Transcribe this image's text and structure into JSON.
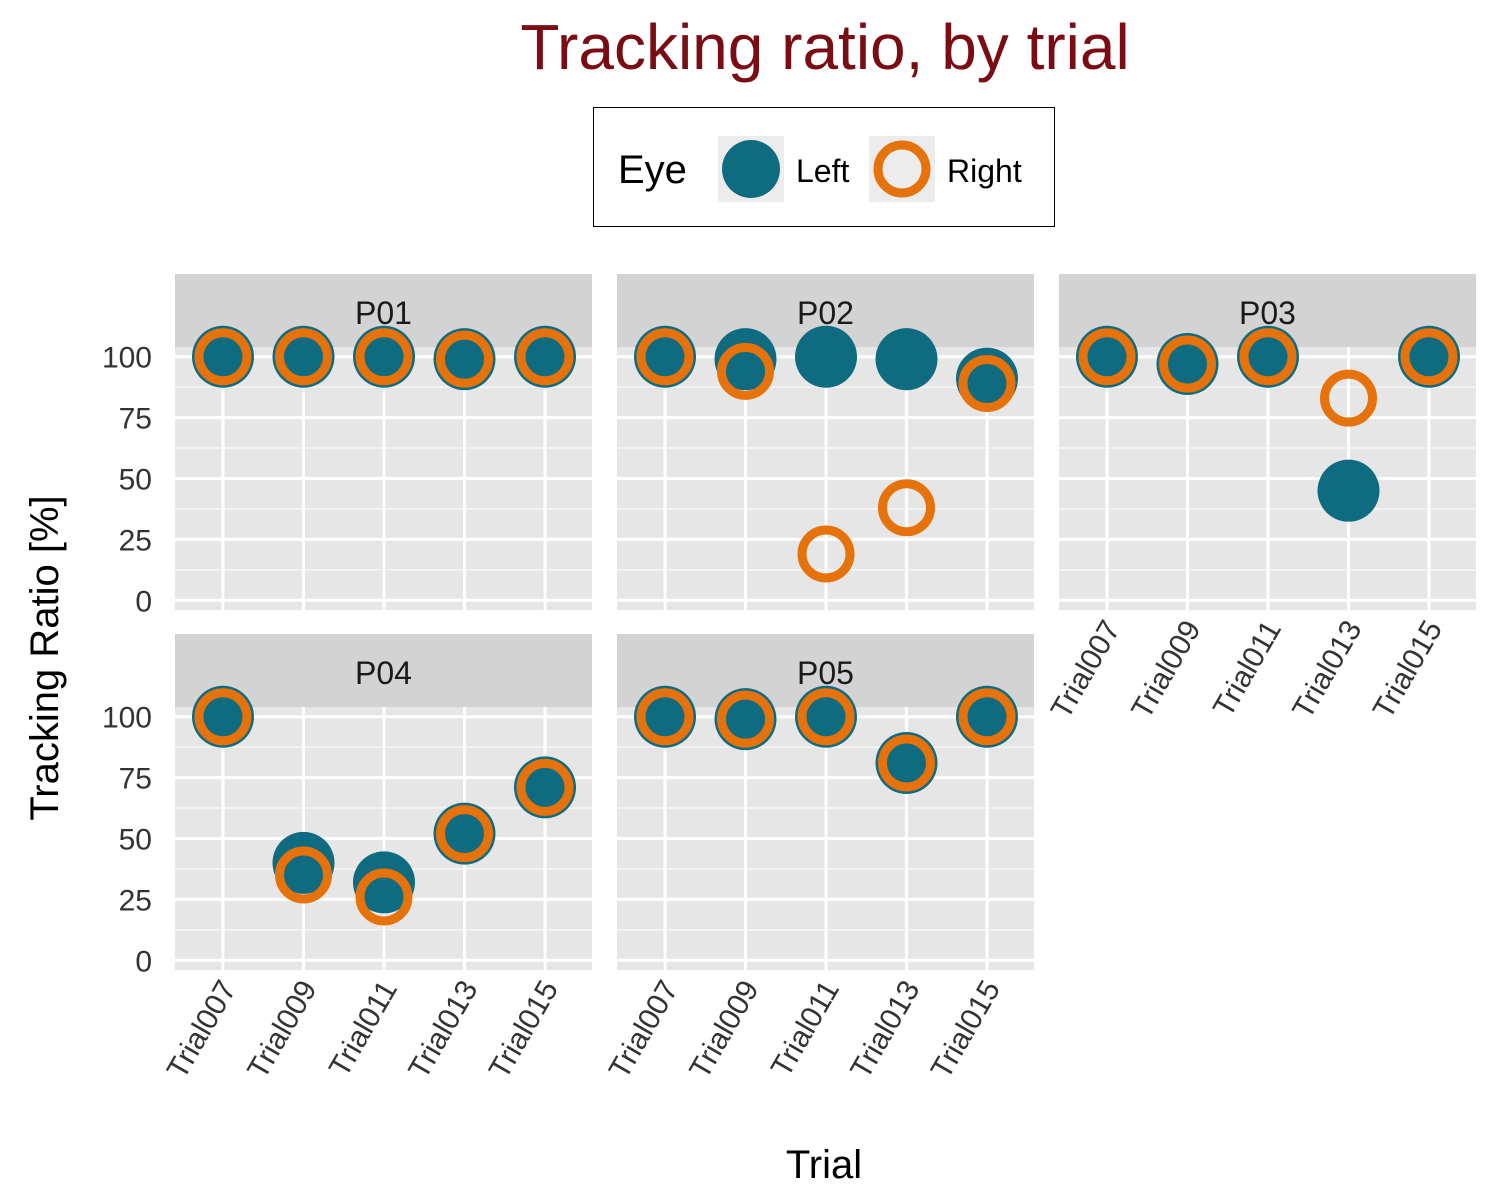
{
  "chart_data": {
    "type": "scatter",
    "title": "Tracking ratio, by trial",
    "xlabel": "Trial",
    "ylabel": "Tracking Ratio [%]",
    "ylim": [
      -4,
      104
    ],
    "yticks": [
      0,
      25,
      50,
      75,
      100
    ],
    "categories": [
      "Trial007",
      "Trial009",
      "Trial011",
      "Trial013",
      "Trial015"
    ],
    "legend": {
      "title": "Eye",
      "position": "top",
      "entries": [
        "Left",
        "Right"
      ]
    },
    "colors": {
      "Left": "#0f6b80",
      "Right": "#e5720b",
      "title": "#7a0c14"
    },
    "panels": [
      {
        "label": "P01",
        "series": [
          {
            "name": "Left",
            "values": [
              100,
              100,
              100,
              99,
              100
            ]
          },
          {
            "name": "Right",
            "values": [
              100,
              100,
              100,
              99,
              100
            ]
          }
        ]
      },
      {
        "label": "P02",
        "series": [
          {
            "name": "Left",
            "values": [
              100,
              99,
              100,
              99,
              91
            ]
          },
          {
            "name": "Right",
            "values": [
              100,
              94,
              19,
              38,
              89
            ]
          }
        ]
      },
      {
        "label": "P03",
        "series": [
          {
            "name": "Left",
            "values": [
              100,
              97,
              100,
              45,
              100
            ]
          },
          {
            "name": "Right",
            "values": [
              100,
              97,
              100,
              83,
              100
            ]
          }
        ]
      },
      {
        "label": "P04",
        "series": [
          {
            "name": "Left",
            "values": [
              100,
              40,
              32,
              52,
              71
            ]
          },
          {
            "name": "Right",
            "values": [
              100,
              35,
              26,
              52,
              71
            ]
          }
        ]
      },
      {
        "label": "P05",
        "series": [
          {
            "name": "Left",
            "values": [
              100,
              99,
              100,
              81,
              100
            ]
          },
          {
            "name": "Right",
            "values": [
              100,
              99,
              100,
              81,
              100
            ]
          }
        ]
      }
    ]
  }
}
